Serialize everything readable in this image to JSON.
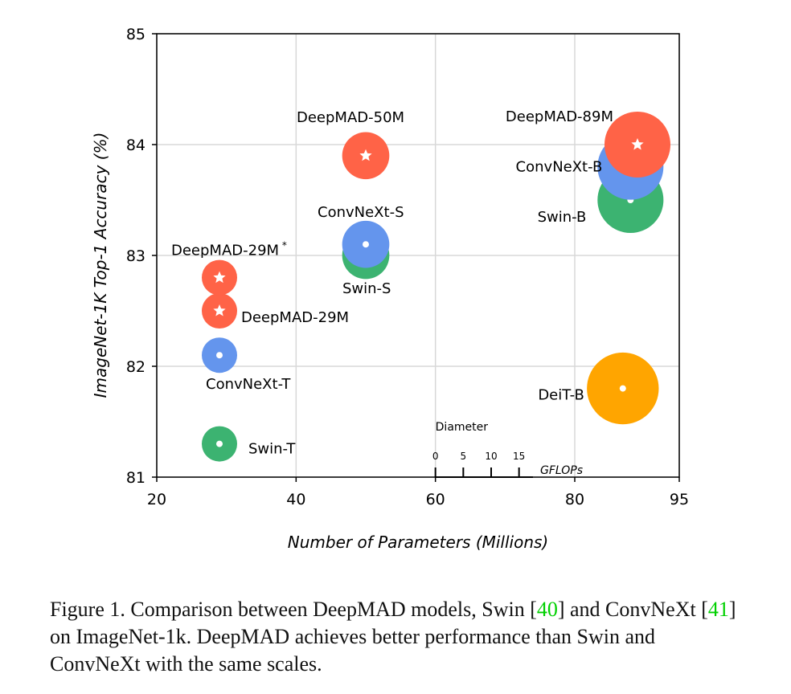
{
  "chart_data": {
    "type": "scatter",
    "xlabel": "Number of Parameters (Millions)",
    "ylabel": "ImageNet-1K Top-1 Accuracy (%)",
    "xlim": [
      20,
      95
    ],
    "ylim": [
      81,
      85
    ],
    "xticks": [
      20,
      40,
      60,
      80,
      95
    ],
    "yticks": [
      81,
      82,
      83,
      84,
      85
    ],
    "grid": true,
    "size_encoding": "marker diameter = GFLOPs",
    "size_legend": {
      "title": "Diameter",
      "ticks": [
        0,
        5,
        10,
        15
      ],
      "unit": "GFLOPs"
    },
    "colors": {
      "DeepMAD": "#FF6347",
      "ConvNeXt": "#6495ED",
      "Swin": "#3CB371",
      "DeiT": "#FFA500"
    },
    "points": [
      {
        "label": "Swin-T",
        "family": "Swin",
        "params": 29,
        "acc": 81.3,
        "gflops": 4.5,
        "marker": "dot"
      },
      {
        "label": "ConvNeXt-T",
        "family": "ConvNeXt",
        "params": 29,
        "acc": 82.1,
        "gflops": 4.5,
        "marker": "dot"
      },
      {
        "label": "DeepMAD-29M",
        "family": "DeepMAD",
        "params": 29,
        "acc": 82.5,
        "gflops": 4.5,
        "marker": "star"
      },
      {
        "label": "DeepMAD-29M",
        "label_sup": "*",
        "family": "DeepMAD",
        "params": 29,
        "acc": 82.8,
        "gflops": 4.5,
        "marker": "star"
      },
      {
        "label": "Swin-S",
        "family": "Swin",
        "params": 50,
        "acc": 83.0,
        "gflops": 8.7,
        "marker": "dot"
      },
      {
        "label": "ConvNeXt-S",
        "family": "ConvNeXt",
        "params": 50,
        "acc": 83.1,
        "gflops": 8.7,
        "marker": "dot"
      },
      {
        "label": "DeepMAD-50M",
        "family": "DeepMAD",
        "params": 50,
        "acc": 83.9,
        "gflops": 8.7,
        "marker": "star"
      },
      {
        "label": "Swin-B",
        "family": "Swin",
        "params": 88,
        "acc": 83.5,
        "gflops": 15.4,
        "marker": "dot"
      },
      {
        "label": "ConvNeXt-B",
        "family": "ConvNeXt",
        "params": 88,
        "acc": 83.8,
        "gflops": 15.4,
        "marker": "dot"
      },
      {
        "label": "DeepMAD-89M",
        "family": "DeepMAD",
        "params": 89,
        "acc": 84.0,
        "gflops": 15.4,
        "marker": "star"
      },
      {
        "label": "DeiT-B",
        "family": "DeiT",
        "params": 86.9,
        "acc": 81.8,
        "gflops": 17.5,
        "marker": "dot"
      }
    ]
  },
  "caption": {
    "p1": "Figure 1. Comparison between DeepMAD models, Swin [",
    "ref1": "40",
    "p2": "] and ConvNeXt [",
    "ref2": "41",
    "p3": "] on ImageNet-1k. DeepMAD achieves better performance than Swin and ConvNeXt with the same scales."
  }
}
